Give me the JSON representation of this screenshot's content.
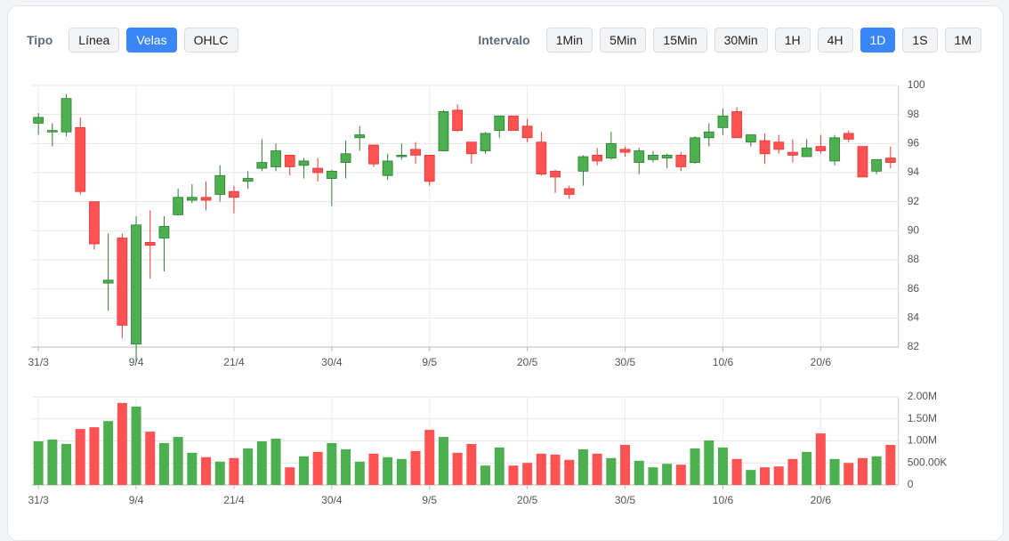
{
  "controls": {
    "type_label": "Tipo",
    "type_options": [
      {
        "label": "Línea",
        "active": false
      },
      {
        "label": "Velas",
        "active": true
      },
      {
        "label": "OHLC",
        "active": false
      }
    ],
    "interval_label": "Intervalo",
    "interval_options": [
      {
        "label": "1Min",
        "active": false
      },
      {
        "label": "5Min",
        "active": false
      },
      {
        "label": "15Min",
        "active": false
      },
      {
        "label": "30Min",
        "active": false
      },
      {
        "label": "1H",
        "active": false
      },
      {
        "label": "4H",
        "active": false
      },
      {
        "label": "1D",
        "active": true
      },
      {
        "label": "1S",
        "active": false
      },
      {
        "label": "1M",
        "active": false
      }
    ]
  },
  "chart_data": [
    {
      "type": "candlestick",
      "categories": [
        "31/3",
        null,
        null,
        null,
        null,
        null,
        null,
        "9/4",
        null,
        null,
        null,
        null,
        null,
        null,
        "21/4",
        null,
        null,
        null,
        null,
        null,
        null,
        "30/4",
        null,
        null,
        null,
        null,
        null,
        null,
        "9/5",
        null,
        null,
        null,
        null,
        null,
        null,
        "20/5",
        null,
        null,
        null,
        null,
        null,
        null,
        "30/5",
        null,
        null,
        null,
        null,
        null,
        null,
        "10/6",
        null,
        null,
        null,
        null,
        null,
        null,
        "20/6",
        null,
        null,
        null,
        null,
        null
      ],
      "open": [
        97.4,
        96.8,
        96.8,
        97.1,
        92.0,
        86.4,
        89.5,
        82.2,
        89.2,
        89.5,
        91.1,
        92.1,
        92.3,
        92.5,
        92.7,
        93.4,
        94.3,
        94.4,
        95.2,
        94.5,
        94.3,
        93.6,
        94.7,
        96.4,
        95.9,
        93.8,
        95.1,
        95.6,
        95.2,
        95.5,
        98.3,
        96.1,
        95.5,
        96.9,
        97.9,
        97.2,
        96.1,
        94.1,
        92.9,
        94.1,
        95.2,
        95.0,
        95.6,
        94.7,
        94.9,
        95.0,
        95.2,
        94.7,
        96.4,
        97.1,
        98.2,
        96.1,
        96.2,
        96.1,
        95.4,
        95.1,
        95.8,
        94.8,
        96.7,
        95.8,
        94.1,
        95.0
      ],
      "high": [
        98.1,
        97.4,
        99.4,
        97.8,
        92.0,
        89.8,
        89.8,
        91.0,
        91.4,
        91.0,
        92.9,
        93.2,
        93.4,
        94.5,
        93.1,
        94.1,
        96.3,
        96.0,
        95.2,
        95.0,
        95.0,
        94.2,
        96.2,
        97.2,
        95.9,
        95.3,
        96.0,
        96.1,
        95.2,
        98.3,
        98.7,
        96.1,
        96.8,
        97.9,
        97.9,
        97.7,
        96.8,
        94.2,
        93.1,
        95.2,
        95.7,
        96.8,
        95.8,
        95.7,
        95.5,
        95.3,
        95.4,
        96.5,
        97.4,
        98.4,
        98.5,
        96.6,
        96.7,
        96.6,
        96.3,
        96.3,
        96.6,
        96.6,
        96.9,
        95.8,
        94.9,
        95.8
      ],
      "low": [
        96.6,
        95.8,
        96.5,
        92.5,
        88.7,
        84.5,
        82.6,
        81.0,
        86.7,
        87.2,
        91.1,
        91.9,
        91.4,
        92.0,
        91.2,
        92.9,
        94.1,
        94.1,
        93.8,
        93.6,
        93.4,
        91.7,
        93.6,
        95.5,
        94.4,
        93.5,
        94.9,
        94.6,
        93.1,
        95.5,
        96.8,
        94.6,
        95.3,
        96.4,
        96.9,
        96.1,
        93.8,
        92.6,
        92.2,
        93.1,
        94.5,
        94.9,
        95.1,
        93.9,
        94.7,
        94.3,
        94.1,
        94.6,
        95.8,
        96.6,
        96.4,
        95.8,
        94.6,
        95.3,
        94.7,
        95.1,
        95.3,
        94.5,
        96.1,
        93.7,
        93.9,
        94.3
      ],
      "close": [
        97.8,
        96.9,
        99.1,
        92.7,
        89.1,
        86.6,
        83.5,
        90.4,
        89.0,
        90.3,
        92.3,
        92.3,
        92.1,
        93.8,
        92.3,
        93.6,
        94.7,
        95.5,
        94.4,
        94.8,
        94.0,
        94.1,
        95.3,
        96.6,
        94.6,
        94.8,
        95.2,
        95.2,
        93.4,
        98.2,
        96.9,
        95.3,
        96.7,
        97.9,
        96.9,
        96.4,
        93.9,
        93.7,
        92.5,
        95.1,
        94.8,
        96.0,
        95.4,
        95.5,
        95.2,
        95.2,
        94.4,
        96.4,
        96.8,
        97.9,
        96.4,
        96.6,
        95.3,
        95.6,
        95.2,
        95.7,
        95.5,
        96.4,
        96.3,
        93.7,
        94.9,
        94.7
      ],
      "up_color": "#4caf50",
      "down_color": "#ff5252",
      "up_border_color": "#2e7d32",
      "down_border_color": "#e53935",
      "ylim": [
        82,
        100
      ],
      "yticks": [
        82,
        84,
        86,
        88,
        90,
        92,
        94,
        96,
        98,
        100
      ],
      "grid": true
    },
    {
      "type": "bar",
      "categories": [
        "31/3",
        null,
        null,
        null,
        null,
        null,
        null,
        "9/4",
        null,
        null,
        null,
        null,
        null,
        null,
        "21/4",
        null,
        null,
        null,
        null,
        null,
        null,
        "30/4",
        null,
        null,
        null,
        null,
        null,
        null,
        "9/5",
        null,
        null,
        null,
        null,
        null,
        null,
        "20/5",
        null,
        null,
        null,
        null,
        null,
        null,
        "30/5",
        null,
        null,
        null,
        null,
        null,
        null,
        "10/6",
        null,
        null,
        null,
        null,
        null,
        null,
        "20/6",
        null,
        null,
        null,
        null,
        null
      ],
      "values": [
        990000,
        1030000,
        930000,
        1270000,
        1310000,
        1450000,
        1860000,
        1780000,
        1210000,
        950000,
        1090000,
        730000,
        630000,
        530000,
        610000,
        830000,
        990000,
        1050000,
        400000,
        650000,
        750000,
        950000,
        810000,
        530000,
        710000,
        630000,
        590000,
        770000,
        1250000,
        1090000,
        730000,
        930000,
        440000,
        850000,
        440000,
        500000,
        710000,
        690000,
        570000,
        810000,
        710000,
        610000,
        910000,
        550000,
        400000,
        480000,
        460000,
        830000,
        1010000,
        850000,
        590000,
        340000,
        400000,
        420000,
        590000,
        750000,
        1170000,
        590000,
        500000,
        610000,
        650000,
        910000
      ],
      "colors": [
        "#4caf50",
        "#4caf50",
        "#4caf50",
        "#ff5252",
        "#ff5252",
        "#4caf50",
        "#ff5252",
        "#4caf50",
        "#ff5252",
        "#4caf50",
        "#4caf50",
        "#4caf50",
        "#ff5252",
        "#4caf50",
        "#ff5252",
        "#4caf50",
        "#4caf50",
        "#4caf50",
        "#ff5252",
        "#4caf50",
        "#ff5252",
        "#4caf50",
        "#4caf50",
        "#4caf50",
        "#ff5252",
        "#4caf50",
        "#4caf50",
        "#ff5252",
        "#ff5252",
        "#4caf50",
        "#ff5252",
        "#ff5252",
        "#4caf50",
        "#4caf50",
        "#ff5252",
        "#ff5252",
        "#ff5252",
        "#ff5252",
        "#ff5252",
        "#4caf50",
        "#ff5252",
        "#4caf50",
        "#ff5252",
        "#4caf50",
        "#4caf50",
        "#4caf50",
        "#ff5252",
        "#4caf50",
        "#4caf50",
        "#4caf50",
        "#ff5252",
        "#4caf50",
        "#ff5252",
        "#ff5252",
        "#ff5252",
        "#4caf50",
        "#ff5252",
        "#4caf50",
        "#ff5252",
        "#ff5252",
        "#4caf50",
        "#ff5252"
      ],
      "ylim": [
        0,
        2000000
      ],
      "yticks": [
        0,
        {
          "value": 500000,
          "label": "500.00K"
        },
        {
          "value": 1000000,
          "label": "1.00M"
        },
        {
          "value": 1500000,
          "label": "1.50M"
        },
        {
          "value": 2000000,
          "label": "2.00M"
        }
      ],
      "grid": true
    }
  ]
}
